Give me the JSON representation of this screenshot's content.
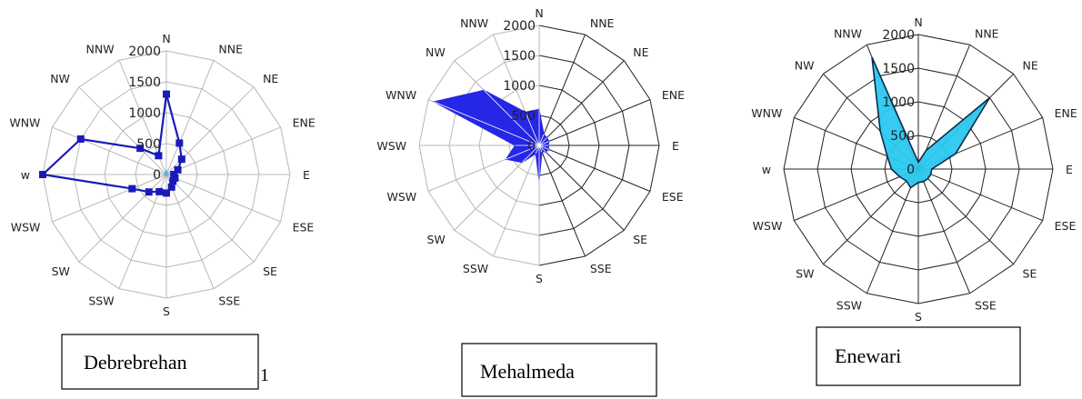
{
  "chart_data": [
    {
      "type": "radar",
      "caption": "Debrebrehan",
      "directions": [
        "N",
        "NNE",
        "NE",
        "ENE",
        "E",
        "ESE",
        "SE",
        "SSE",
        "S",
        "SSW",
        "SW",
        "WSW",
        "w",
        "WNW",
        "NW",
        "NNW"
      ],
      "ticks": [
        0,
        500,
        1000,
        1500,
        2000
      ],
      "ylim": [
        0,
        2000
      ],
      "series": [
        {
          "values": [
            1300,
            550,
            350,
            200,
            120,
            150,
            150,
            220,
            300,
            300,
            400,
            600,
            2000,
            1500,
            600,
            330
          ],
          "color": "#1a1ab8",
          "style": "line-markers"
        },
        {
          "values": [
            80,
            30,
            30,
            30,
            20,
            20,
            20,
            20,
            20,
            20,
            20,
            20,
            30,
            30,
            30,
            30
          ],
          "color": "#45b8e0",
          "style": "area"
        }
      ]
    },
    {
      "type": "radar",
      "caption": "Mehalmeda",
      "directions": [
        "N",
        "NNE",
        "NE",
        "ENE",
        "E",
        "ESE",
        "SE",
        "SSE",
        "S",
        "SSW",
        "SW",
        "WSW",
        "WSW",
        "WNW",
        "NW",
        "NNW"
      ],
      "ticks": [
        0,
        500,
        1000,
        1500,
        2000
      ],
      "ylim": [
        0,
        2000
      ],
      "series": [
        {
          "values": [
            600,
            200,
            180,
            180,
            150,
            180,
            150,
            120,
            600,
            150,
            400,
            600,
            400,
            1900,
            1300,
            600
          ],
          "color": "#2626e6",
          "style": "area"
        }
      ]
    },
    {
      "type": "radar",
      "caption": "Enewari",
      "directions": [
        "N",
        "NNE",
        "NE",
        "ENE",
        "E",
        "ESE",
        "SE",
        "SSE",
        "S",
        "SSW",
        "SW",
        "WSW",
        "w",
        "WNW",
        "NW",
        "NNW"
      ],
      "ticks": [
        0,
        500,
        1000,
        1500,
        2000
      ],
      "ylim": [
        0,
        2000
      ],
      "series": [
        {
          "values": [
            100,
            300,
            1500,
            600,
            200,
            200,
            200,
            200,
            200,
            300,
            250,
            300,
            400,
            500,
            800,
            1800
          ],
          "color": "#2bc8ef",
          "style": "area"
        }
      ]
    }
  ],
  "stray_mark": "1"
}
